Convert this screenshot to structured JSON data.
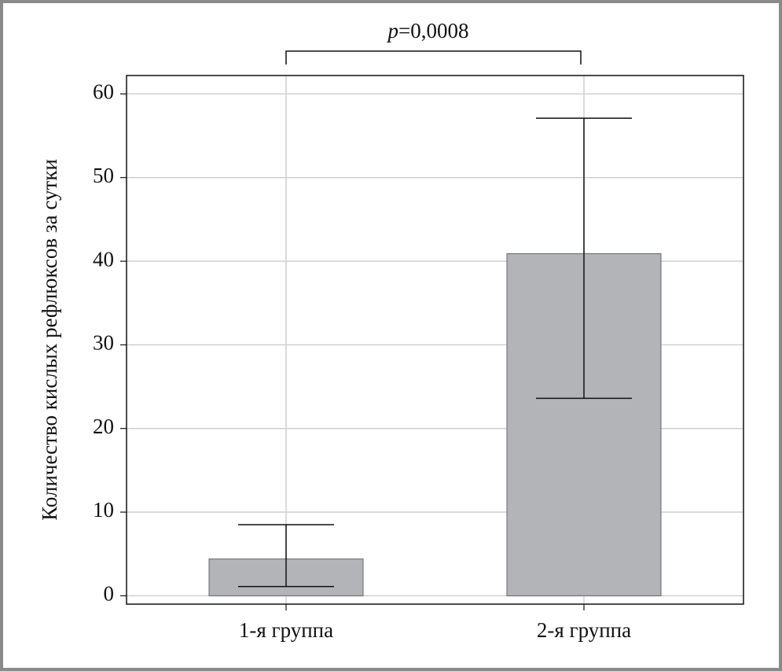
{
  "chart_data": {
    "type": "bar",
    "ylabel": "Количество кислых рефлюксов за сутки",
    "categories": [
      "1-я группа",
      "2-я группа"
    ],
    "values": [
      4.4,
      40.9
    ],
    "lower": [
      1.1,
      23.6
    ],
    "upper": [
      8.5,
      57.1
    ],
    "color": "#b3b4b8",
    "ylim": [
      -1,
      62.2
    ],
    "yticks": [
      0,
      10,
      20,
      30,
      40,
      50,
      60
    ],
    "grid": true,
    "annotation": [
      "p",
      "=0,0008"
    ]
  }
}
